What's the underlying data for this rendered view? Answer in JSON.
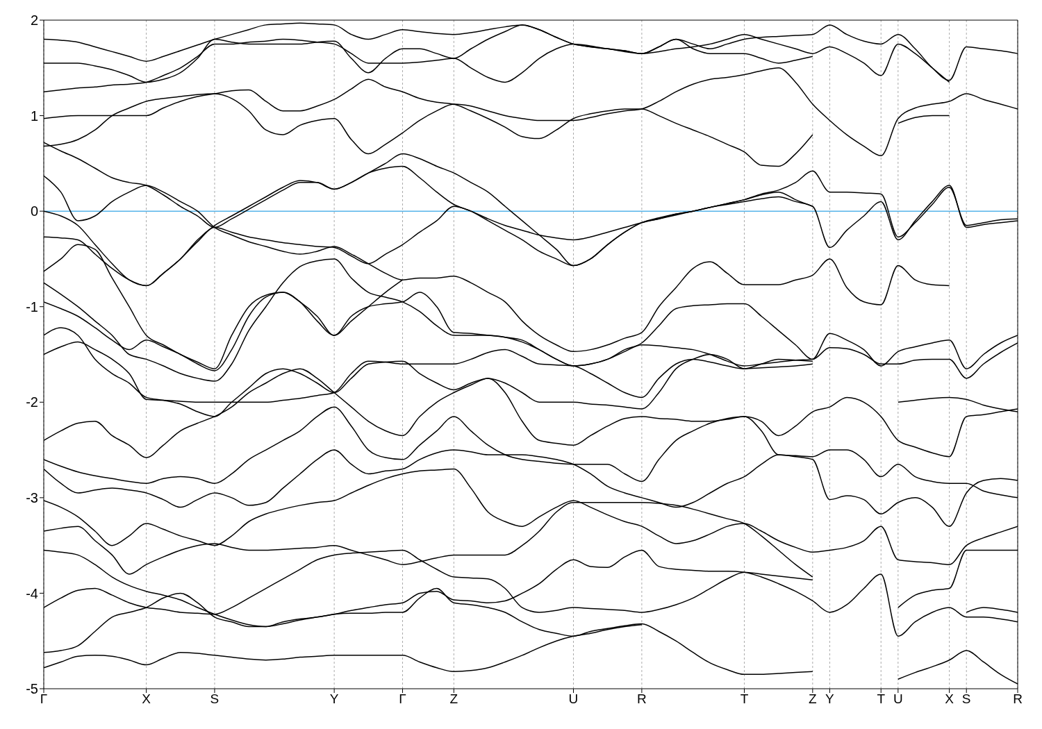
{
  "chart_data": {
    "type": "line",
    "ylim": [
      -5,
      2
    ],
    "yticks": [
      -5,
      -4,
      -3,
      -2,
      -1,
      0,
      1,
      2
    ],
    "categories": [
      "Γ",
      null,
      null,
      null,
      null,
      null,
      "X",
      null,
      null,
      null,
      "S",
      null,
      null,
      null,
      null,
      null,
      null,
      "Y",
      null,
      null,
      null,
      "Γ",
      null,
      null,
      "Z",
      null,
      null,
      null,
      null,
      null,
      null,
      "U",
      null,
      null,
      null,
      "R",
      null,
      null,
      null,
      null,
      null,
      "T",
      null,
      null,
      null,
      "Z",
      "Y",
      null,
      null,
      "T",
      "U",
      null,
      null,
      "X",
      "S",
      null,
      null,
      "R"
    ],
    "grid": "x",
    "ref_lines": [
      {
        "axis": "y",
        "value": 0,
        "color": "#56b4e9"
      }
    ],
    "series": [
      {
        "color": "#000000",
        "values": [
          0.37,
          0.2,
          -0.1,
          -0.05,
          0.1,
          0.2,
          0.27,
          0.2,
          0.1,
          0,
          -0.17,
          -0.25,
          -0.32,
          -0.37,
          -0.42,
          -0.45,
          -0.42,
          -0.37,
          -0.45,
          -0.55,
          -0.65,
          -0.72,
          -0.7,
          -0.7,
          -0.68,
          -0.75,
          -0.85,
          -0.95,
          -1.15,
          -1.3,
          -1.4,
          -1.47,
          -1.45,
          -1.4,
          -1.33,
          -1.27,
          -1.0,
          -0.8,
          -0.6,
          -0.53,
          -0.65,
          -0.77,
          -0.77,
          -0.77,
          -0.72,
          -0.67,
          -0.5,
          -0.8,
          -0.95,
          -0.98,
          -0.57,
          -0.72,
          -0.77,
          -0.78,
          null,
          null,
          null,
          null
        ]
      },
      {
        "color": "#000000",
        "values": [
          0,
          -0.05,
          -0.15,
          -0.35,
          -0.55,
          -0.72,
          -0.78,
          -0.65,
          -0.5,
          -0.3,
          -0.15,
          -0.05,
          0.05,
          0.15,
          0.25,
          0.32,
          0.3,
          0.23,
          0.3,
          0.4,
          0.5,
          0.6,
          0.55,
          0.47,
          0.4,
          0.3,
          0.2,
          0.05,
          -0.1,
          -0.25,
          -0.4,
          -0.57,
          -0.5,
          -0.35,
          -0.22,
          -0.12,
          -0.08,
          -0.03,
          0,
          0.04,
          0.08,
          0.12,
          0.17,
          0.2,
          0.12,
          0.05,
          null,
          null,
          null,
          null,
          null,
          null,
          null,
          null,
          null,
          null,
          null,
          null
        ]
      },
      {
        "color": "#000000",
        "values": [
          -0.63,
          -0.5,
          -0.35,
          -0.4,
          -0.7,
          -1.0,
          -1.3,
          -1.4,
          -1.5,
          -1.58,
          -1.65,
          -1.3,
          -1.0,
          -0.88,
          -0.85,
          -0.95,
          -1.15,
          -1.3,
          -1.15,
          -1.0,
          -0.85,
          -0.72,
          null,
          null,
          null,
          null,
          null,
          null,
          null,
          null,
          null,
          null,
          null,
          null,
          null,
          null,
          null,
          null,
          null,
          null,
          null,
          null,
          null,
          null,
          null,
          null,
          null,
          null,
          null,
          null,
          null,
          null,
          null,
          null,
          null,
          null,
          null,
          null
        ]
      },
      {
        "color": "#000000",
        "values": [
          0.68,
          0.7,
          0.75,
          0.85,
          1.0,
          1.08,
          1.15,
          1.18,
          1.2,
          1.22,
          1.23,
          1.18,
          1.05,
          0.85,
          0.8,
          0.9,
          0.95,
          0.97,
          0.75,
          0.6,
          0.7,
          0.82,
          0.95,
          1.05,
          1.12,
          1.1,
          1.05,
          1.0,
          0.97,
          0.95,
          0.95,
          0.95,
          0.98,
          1.02,
          1.05,
          1.07,
          1.15,
          1.25,
          1.33,
          1.38,
          1.4,
          1.43,
          1.47,
          1.5,
          1.35,
          1.12,
          0.95,
          0.8,
          0.68,
          0.58,
          0.97,
          1.08,
          1.12,
          1.15,
          1.23,
          1.17,
          1.12,
          1.07
        ]
      },
      {
        "color": "#000000",
        "values": [
          0.97,
          0.99,
          1.0,
          1.0,
          1.0,
          1.0,
          1.0,
          1.08,
          1.15,
          1.2,
          1.23,
          1.26,
          1.27,
          1.15,
          1.05,
          1.05,
          1.1,
          1.17,
          1.28,
          1.38,
          1.3,
          1.25,
          1.18,
          1.14,
          1.12,
          1.05,
          0.97,
          0.88,
          0.78,
          0.76,
          0.85,
          0.97,
          1.02,
          1.05,
          1.07,
          1.07,
          1.0,
          0.92,
          0.85,
          0.78,
          0.7,
          0.62,
          0.48,
          0.47,
          0.6,
          0.8,
          null,
          null,
          null,
          null,
          0.92,
          0.98,
          1.0,
          1.0,
          null,
          null,
          null,
          null
        ]
      },
      {
        "color": "#000000",
        "values": [
          1.25,
          1.27,
          1.29,
          1.3,
          1.32,
          1.33,
          1.35,
          1.42,
          1.5,
          1.62,
          1.75,
          1.75,
          1.77,
          1.78,
          1.8,
          1.79,
          1.77,
          1.75,
          1.65,
          1.55,
          1.55,
          1.55,
          1.56,
          1.58,
          1.6,
          1.5,
          1.4,
          1.35,
          1.45,
          1.6,
          1.7,
          1.75,
          1.73,
          1.7,
          1.68,
          1.65,
          1.72,
          1.8,
          1.7,
          1.65,
          1.65,
          1.65,
          1.6,
          1.55,
          1.58,
          1.62,
          null,
          null,
          null,
          null,
          null,
          null,
          null,
          null,
          null,
          null,
          null,
          null
        ]
      },
      {
        "color": "#000000",
        "values": [
          1.55,
          1.55,
          1.55,
          1.52,
          1.48,
          1.42,
          1.35,
          1.38,
          1.45,
          1.6,
          1.8,
          1.77,
          1.75,
          1.75,
          1.75,
          1.75,
          1.77,
          1.78,
          1.6,
          1.45,
          1.6,
          1.7,
          1.7,
          1.65,
          1.6,
          1.7,
          1.8,
          1.88,
          1.95,
          1.9,
          1.82,
          1.75,
          1.72,
          1.7,
          1.68,
          1.65,
          1.67,
          1.7,
          1.72,
          1.75,
          1.8,
          1.85,
          1.8,
          1.75,
          1.7,
          1.65,
          1.72,
          1.65,
          1.55,
          1.42,
          1.75,
          1.65,
          1.5,
          1.35,
          null,
          null,
          null,
          null
        ]
      },
      {
        "color": "#000000",
        "values": [
          1.8,
          1.79,
          1.77,
          1.72,
          1.67,
          1.62,
          1.57,
          1.62,
          1.68,
          1.74,
          1.8,
          1.85,
          1.9,
          1.95,
          1.96,
          1.97,
          1.96,
          1.95,
          1.85,
          1.8,
          1.85,
          1.9,
          1.88,
          1.86,
          1.85,
          1.87,
          1.9,
          1.93,
          1.95,
          1.9,
          1.82,
          1.75,
          1.72,
          1.7,
          1.67,
          1.65,
          1.72,
          1.8,
          1.75,
          1.7,
          1.75,
          1.8,
          1.82,
          1.83,
          1.84,
          1.85,
          1.95,
          1.85,
          1.78,
          1.75,
          1.85,
          1.7,
          1.5,
          1.37,
          1.72,
          1.7,
          1.68,
          1.65
        ]
      },
      {
        "color": "#000000",
        "values": [
          -0.95,
          -1.02,
          -1.1,
          -1.22,
          -1.35,
          -1.45,
          -1.35,
          -1.42,
          -1.5,
          -1.6,
          -1.67,
          -1.45,
          -1.1,
          -0.9,
          -0.85,
          -0.95,
          -1.1,
          -1.3,
          -1.1,
          -1.0,
          -0.97,
          -0.95,
          -0.85,
          -1.0,
          -1.27,
          -1.28,
          -1.3,
          -1.32,
          -1.35,
          -1.45,
          -1.55,
          -1.62,
          -1.6,
          -1.55,
          -1.45,
          -1.38,
          -1.2,
          -1.02,
          -0.99,
          -0.98,
          -0.97,
          -0.97,
          -1.1,
          -1.25,
          -1.4,
          -1.55,
          -1.43,
          -1.44,
          -1.5,
          -1.6,
          -1.6,
          -1.56,
          -1.55,
          -1.55,
          -1.75,
          -1.6,
          -1.48,
          -1.38
        ]
      },
      {
        "color": "#000000",
        "values": [
          -1.3,
          -1.22,
          -1.3,
          -1.55,
          -1.7,
          -1.8,
          -1.95,
          -1.98,
          -2.02,
          -2.1,
          -2.15,
          -2.0,
          -1.85,
          -1.7,
          -1.65,
          -1.7,
          -1.8,
          -1.9,
          -1.75,
          -1.6,
          -1.58,
          -1.57,
          -1.7,
          -1.8,
          -1.87,
          -1.8,
          -1.75,
          -1.8,
          -1.9,
          -2.0,
          -2.0,
          -2.0,
          -2.02,
          -2.03,
          -2.05,
          -2.07,
          -1.9,
          -1.65,
          -1.55,
          -1.5,
          -1.55,
          -1.65,
          -1.6,
          -1.55,
          -1.56,
          -1.57,
          null,
          null,
          null,
          null,
          null,
          null,
          null,
          null,
          null,
          null,
          null,
          null
        ]
      },
      {
        "color": "#000000",
        "values": [
          -1.5,
          -1.42,
          -1.37,
          -1.45,
          -1.55,
          -1.7,
          -1.97,
          -1.98,
          -1.99,
          -2.0,
          -2.0,
          -2.0,
          -2.0,
          -2.0,
          -1.98,
          -1.96,
          -1.93,
          -1.9,
          -1.7,
          -1.57,
          -1.58,
          -1.6,
          -1.6,
          -1.6,
          -1.6,
          -1.55,
          -1.48,
          -1.45,
          -1.52,
          -1.6,
          -1.61,
          -1.62,
          -1.7,
          -1.8,
          -1.9,
          -1.95,
          -1.75,
          -1.6,
          -1.55,
          -1.58,
          -1.62,
          -1.65,
          -1.64,
          -1.63,
          -1.62,
          -1.6,
          null,
          null,
          null,
          null,
          -2.0,
          -1.98,
          -1.96,
          -1.95,
          -1.97,
          -2.03,
          -2.07,
          -2.1
        ]
      },
      {
        "color": "#000000",
        "values": [
          -0.75,
          -0.87,
          -1.0,
          -1.15,
          -1.3,
          -1.5,
          -1.55,
          -1.62,
          -1.7,
          -1.75,
          -1.78,
          -1.6,
          -1.25,
          -1.0,
          -0.75,
          -0.58,
          -0.52,
          -0.5,
          -0.7,
          -0.85,
          -0.9,
          -0.95,
          -1.05,
          -1.2,
          -1.3,
          -1.3,
          -1.3,
          -1.32,
          -1.37,
          -1.45,
          -1.55,
          -1.62,
          -1.6,
          -1.55,
          -1.47,
          -1.4,
          -1.41,
          -1.43,
          -1.45,
          -1.5,
          -1.57,
          -1.62,
          -1.6,
          -1.58,
          -1.56,
          -1.55,
          -1.28,
          -1.35,
          -1.45,
          -1.62,
          -1.47,
          -1.42,
          -1.38,
          -1.35,
          -1.65,
          -1.5,
          -1.38,
          -1.3
        ]
      },
      {
        "color": "#000000",
        "values": [
          -0.27,
          -0.28,
          -0.3,
          -0.45,
          -0.6,
          -0.72,
          -0.78,
          -0.65,
          -0.5,
          -0.32,
          -0.17,
          -0.22,
          -0.27,
          -0.3,
          -0.33,
          -0.35,
          -0.37,
          -0.38,
          -0.47,
          -0.55,
          -0.45,
          -0.35,
          -0.22,
          -0.1,
          0.05,
          0,
          -0.08,
          -0.15,
          -0.2,
          -0.25,
          -0.28,
          -0.3,
          -0.27,
          -0.22,
          -0.17,
          -0.12,
          -0.08,
          -0.04,
          0,
          0.04,
          0.08,
          0.12,
          0.18,
          0.22,
          0.3,
          0.42,
          0.2,
          0.2,
          0.19,
          0.18,
          -0.27,
          -0.12,
          0.07,
          0.25,
          -0.15,
          -0.12,
          -0.09,
          -0.08
        ]
      },
      {
        "color": "#000000",
        "values": [
          0.72,
          0.63,
          0.55,
          0.45,
          0.35,
          0.3,
          0.27,
          0.17,
          0.05,
          -0.05,
          -0.17,
          -0.08,
          0.02,
          0.12,
          0.22,
          0.3,
          0.3,
          0.23,
          0.3,
          0.4,
          0.45,
          0.47,
          0.35,
          0.2,
          0.07,
          0,
          -0.1,
          -0.2,
          -0.3,
          -0.42,
          -0.5,
          -0.57,
          -0.5,
          -0.35,
          -0.22,
          -0.12,
          -0.07,
          -0.03,
          0,
          0.04,
          0.07,
          0.1,
          0.13,
          0.15,
          0.1,
          0.05,
          -0.38,
          -0.2,
          -0.05,
          0.1,
          -0.3,
          -0.1,
          0.1,
          0.27,
          -0.17,
          -0.14,
          -0.12,
          -0.1
        ]
      },
      {
        "color": "#000000",
        "values": [
          -2.4,
          -2.3,
          -2.22,
          -2.2,
          -2.35,
          -2.45,
          -2.58,
          -2.45,
          -2.3,
          -2.22,
          -2.15,
          -2.05,
          -1.9,
          -1.8,
          -1.7,
          -1.65,
          -1.75,
          -1.9,
          -2.05,
          -2.2,
          -2.3,
          -2.35,
          -2.15,
          -2.0,
          -1.9,
          -1.82,
          -1.75,
          -1.9,
          -2.2,
          -2.4,
          -2.43,
          -2.45,
          -2.35,
          -2.25,
          -2.17,
          -2.15,
          -2.17,
          -2.18,
          -2.2,
          -2.2,
          -2.18,
          -2.15,
          -2.2,
          -2.35,
          -2.25,
          -2.1,
          -2.05,
          -1.95,
          -2.0,
          -2.15,
          -2.4,
          -2.47,
          -2.53,
          -2.57,
          -2.15,
          -2.13,
          -2.1,
          -2.07
        ]
      },
      {
        "color": "#000000",
        "values": [
          -2.6,
          -2.67,
          -2.73,
          -2.77,
          -2.8,
          -2.83,
          -2.85,
          -2.8,
          -2.78,
          -2.8,
          -2.85,
          -2.75,
          -2.6,
          -2.5,
          -2.4,
          -2.3,
          -2.15,
          -2.05,
          -2.25,
          -2.5,
          -2.58,
          -2.6,
          -2.45,
          -2.3,
          -2.15,
          -2.3,
          -2.45,
          -2.55,
          -2.6,
          -2.62,
          -2.64,
          -2.65,
          -2.65,
          -2.65,
          -2.75,
          -2.83,
          -2.6,
          -2.4,
          -2.3,
          -2.22,
          -2.17,
          -2.15,
          -2.3,
          -2.55,
          -2.56,
          -2.57,
          -2.5,
          -2.5,
          -2.6,
          -2.78,
          -2.65,
          -2.78,
          -2.83,
          -2.85,
          -2.85,
          -2.93,
          -2.97,
          -3.0
        ]
      },
      {
        "color": "#000000",
        "values": [
          -2.7,
          -2.85,
          -2.95,
          -2.92,
          -2.9,
          -2.92,
          -2.95,
          -3.02,
          -3.1,
          -3.02,
          -2.95,
          -3.0,
          -3.08,
          -3.05,
          -2.9,
          -2.75,
          -2.6,
          -2.5,
          -2.65,
          -2.75,
          -2.72,
          -2.7,
          -2.6,
          -2.53,
          -2.5,
          -2.52,
          -2.55,
          -2.55,
          -2.55,
          -2.57,
          -2.6,
          -2.65,
          -2.75,
          -2.88,
          -2.95,
          -3.0,
          -3.05,
          -3.1,
          -3.05,
          -2.95,
          -2.85,
          -2.78,
          -2.65,
          -2.55,
          -2.57,
          -2.6,
          -3.02,
          -2.98,
          -3.02,
          -3.17,
          -3.05,
          -3.0,
          -3.1,
          -3.3,
          -2.95,
          -2.82,
          -2.8,
          -2.82
        ]
      },
      {
        "color": "#000000",
        "values": [
          -3.03,
          -3.1,
          -3.2,
          -3.35,
          -3.5,
          -3.4,
          -3.27,
          -3.33,
          -3.4,
          -3.45,
          -3.5,
          -3.4,
          -3.25,
          -3.17,
          -3.12,
          -3.08,
          -3.05,
          -3.03,
          -2.95,
          -2.87,
          -2.8,
          -2.75,
          -2.72,
          -2.71,
          -2.7,
          -2.9,
          -3.15,
          -3.25,
          -3.3,
          -3.2,
          -3.1,
          -3.03,
          -3.1,
          -3.18,
          -3.25,
          -3.3,
          -3.4,
          -3.48,
          -3.45,
          -3.38,
          -3.3,
          -3.27,
          -3.35,
          -3.45,
          -3.52,
          -3.57,
          -3.55,
          -3.52,
          -3.45,
          -3.3,
          -3.65,
          -3.67,
          -3.68,
          -3.7,
          -3.5,
          -3.42,
          -3.36,
          -3.3
        ]
      },
      {
        "color": "#000000",
        "values": [
          -3.35,
          -3.32,
          -3.3,
          -3.45,
          -3.6,
          -3.8,
          -3.7,
          -3.62,
          -3.55,
          -3.5,
          -3.48,
          -3.52,
          -3.55,
          -3.55,
          -3.54,
          -3.53,
          -3.52,
          -3.5,
          -3.55,
          -3.6,
          -3.65,
          -3.7,
          -3.67,
          -3.63,
          -3.6,
          -3.6,
          -3.6,
          -3.6,
          -3.5,
          -3.35,
          -3.15,
          -3.05,
          -3.05,
          -3.05,
          -3.05,
          -3.05,
          -3.06,
          -3.08,
          -3.12,
          -3.17,
          -3.22,
          -3.27,
          -3.4,
          -3.55,
          -3.7,
          -3.83,
          null,
          null,
          null,
          null,
          -4.15,
          -4.02,
          -3.97,
          -3.95,
          -3.55,
          -3.55,
          -3.55,
          -3.55
        ]
      },
      {
        "color": "#000000",
        "values": [
          -3.55,
          -3.57,
          -3.6,
          -3.7,
          -3.83,
          -3.92,
          -3.98,
          -4.02,
          -4.07,
          -4.15,
          -4.22,
          -4.28,
          -4.33,
          -4.35,
          -4.32,
          -4.28,
          -4.25,
          -4.22,
          -4.18,
          -4.15,
          -4.12,
          -4.1,
          -4.0,
          -3.98,
          -4.07,
          -4.08,
          -4.1,
          -4.08,
          -4.0,
          -3.9,
          -3.75,
          -3.65,
          -3.72,
          -3.73,
          -3.62,
          -3.55,
          -3.72,
          -3.75,
          -3.76,
          -3.77,
          -3.77,
          -3.78,
          -3.83,
          -3.9,
          -3.98,
          -4.08,
          -4.2,
          -4.12,
          -3.95,
          -3.8,
          -4.45,
          -4.3,
          -4.2,
          -4.15,
          -4.25,
          -4.25,
          -4.27,
          -4.3
        ]
      },
      {
        "color": "#000000",
        "values": [
          -4.15,
          -4.05,
          -3.97,
          -3.95,
          -4.02,
          -4.1,
          -4.15,
          -4.17,
          -4.2,
          -4.21,
          -4.22,
          -4.15,
          -4.05,
          -3.95,
          -3.85,
          -3.75,
          -3.65,
          -3.6,
          -3.58,
          -3.57,
          -3.56,
          -3.55,
          -3.65,
          -3.75,
          -3.83,
          -3.84,
          -3.85,
          -3.95,
          -4.15,
          -4.2,
          -4.18,
          -4.15,
          -4.16,
          -4.17,
          -4.18,
          -4.2,
          -4.17,
          -4.12,
          -4.05,
          -3.95,
          -3.85,
          -3.78,
          -3.8,
          -3.82,
          -3.84,
          -3.86,
          null,
          null,
          null,
          null,
          null,
          null,
          null,
          null,
          -4.2,
          -4.15,
          -4.17,
          -4.2
        ]
      },
      {
        "color": "#000000",
        "values": [
          -4.62,
          -4.6,
          -4.55,
          -4.4,
          -4.25,
          -4.2,
          -4.15,
          -4.05,
          -4.0,
          -4.1,
          -4.25,
          -4.3,
          -4.35,
          -4.35,
          -4.3,
          -4.27,
          -4.25,
          -4.22,
          -4.21,
          -4.21,
          -4.2,
          -4.2,
          -4.05,
          -3.95,
          -4.1,
          -4.12,
          -4.15,
          -4.2,
          -4.3,
          -4.38,
          -4.42,
          -4.45,
          -4.4,
          -4.37,
          -4.34,
          -4.32,
          -4.4,
          -4.5,
          -4.62,
          -4.73,
          -4.8,
          -4.85,
          -4.85,
          -4.84,
          -4.83,
          -4.82,
          null,
          null,
          null,
          null,
          -4.9,
          -4.83,
          -4.77,
          -4.7,
          -4.6,
          -4.72,
          -4.85,
          -4.95
        ]
      },
      {
        "color": "#000000",
        "values": [
          -4.78,
          -4.72,
          -4.66,
          -4.65,
          -4.66,
          -4.7,
          -4.75,
          -4.68,
          -4.62,
          -4.63,
          -4.65,
          -4.67,
          -4.69,
          -4.7,
          -4.69,
          -4.67,
          -4.66,
          -4.65,
          -4.65,
          -4.65,
          -4.65,
          -4.65,
          -4.72,
          -4.78,
          -4.82,
          -4.81,
          -4.78,
          -4.72,
          -4.65,
          -4.57,
          -4.5,
          -4.45,
          -4.42,
          -4.38,
          -4.35,
          -4.33,
          null,
          null,
          null,
          null,
          null,
          null,
          null,
          null,
          null,
          null,
          null,
          null,
          null,
          null,
          null,
          null,
          null,
          null,
          null,
          null,
          null,
          null
        ]
      }
    ]
  }
}
